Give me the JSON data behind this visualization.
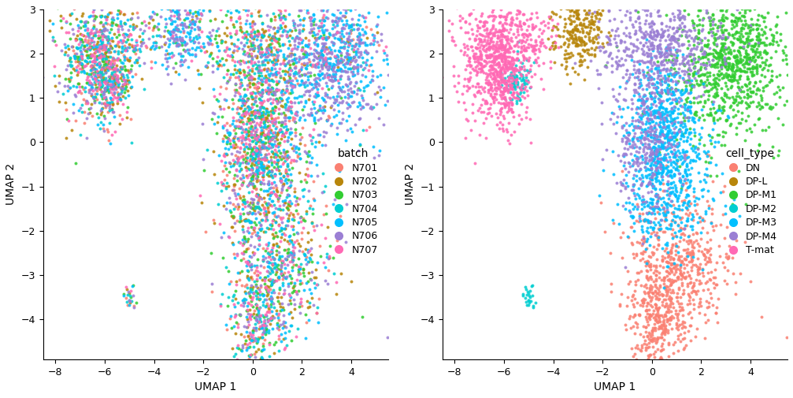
{
  "batch_colors": {
    "N701": "#FA8072",
    "N702": "#B8860B",
    "N703": "#32CD32",
    "N704": "#00CED1",
    "N705": "#00BFFF",
    "N706": "#9B7FD4",
    "N707": "#FF69B4"
  },
  "cell_type_colors": {
    "DN": "#FA8072",
    "DP-L": "#B8860B",
    "DP-M1": "#32CD32",
    "DP-M2": "#00CED1",
    "DP-M3": "#00BFFF",
    "DP-M4": "#9B7FD4",
    "T-mat": "#FF69B4"
  },
  "xlim": [
    -8.5,
    5.5
  ],
  "ylim": [
    -4.9,
    3.0
  ],
  "xlabel": "UMAP 1",
  "ylabel": "UMAP 2",
  "title_left": "batch",
  "title_right": "cell_type",
  "figsize": [
    10.07,
    5.05
  ],
  "dpi": 100,
  "point_size": 8,
  "alpha": 0.85,
  "seed": 42
}
